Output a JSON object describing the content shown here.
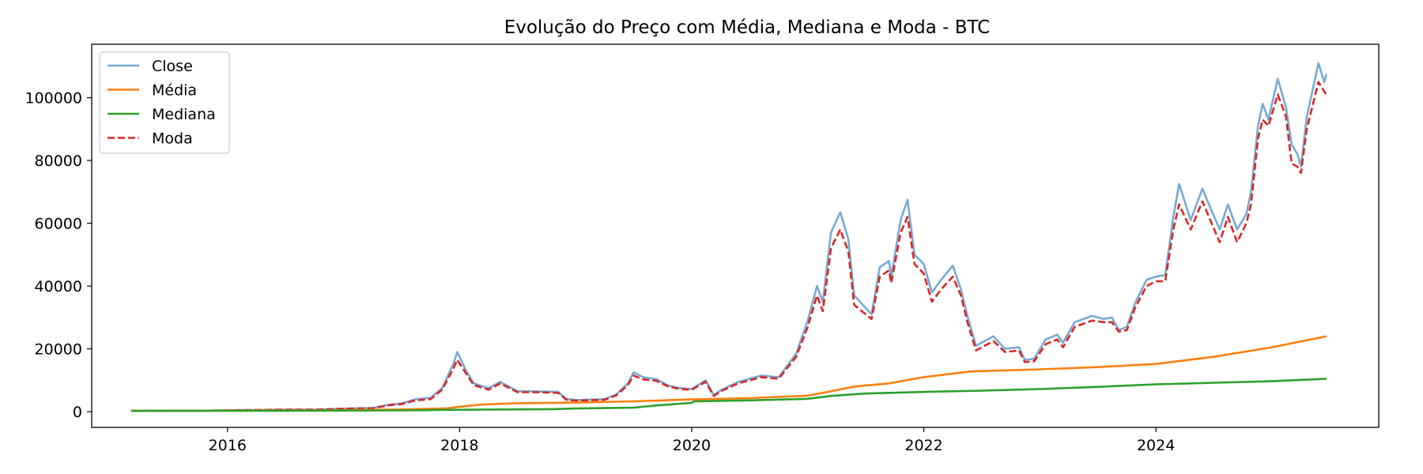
{
  "chart_data": {
    "type": "line",
    "title": "Evolução do Preço com Média, Mediana e Moda - BTC",
    "xlabel": "",
    "ylabel": "",
    "xlim": [
      2014.83,
      2025.92
    ],
    "ylim": [
      -5000,
      117000
    ],
    "x_ticks": [
      2016,
      2018,
      2020,
      2022,
      2024
    ],
    "y_ticks": [
      0,
      20000,
      40000,
      60000,
      80000,
      100000
    ],
    "legend_position": "top-left",
    "grid": false,
    "series": [
      {
        "name": "Close",
        "color": "#77aad3",
        "style": "solid",
        "points": [
          [
            2015.17,
            250
          ],
          [
            2015.5,
            260
          ],
          [
            2015.83,
            330
          ],
          [
            2016.0,
            430
          ],
          [
            2016.5,
            650
          ],
          [
            2016.75,
            640
          ],
          [
            2017.0,
            970
          ],
          [
            2017.25,
            1200
          ],
          [
            2017.4,
            2300
          ],
          [
            2017.5,
            2600
          ],
          [
            2017.62,
            4000
          ],
          [
            2017.75,
            4400
          ],
          [
            2017.85,
            7500
          ],
          [
            2017.95,
            15500
          ],
          [
            2017.98,
            19000
          ],
          [
            2018.05,
            13500
          ],
          [
            2018.12,
            9000
          ],
          [
            2018.25,
            7500
          ],
          [
            2018.35,
            9500
          ],
          [
            2018.5,
            6500
          ],
          [
            2018.65,
            6500
          ],
          [
            2018.85,
            6300
          ],
          [
            2018.92,
            4000
          ],
          [
            2019.0,
            3700
          ],
          [
            2019.25,
            4000
          ],
          [
            2019.35,
            5500
          ],
          [
            2019.45,
            9000
          ],
          [
            2019.5,
            12500
          ],
          [
            2019.58,
            11000
          ],
          [
            2019.7,
            10300
          ],
          [
            2019.8,
            8300
          ],
          [
            2019.9,
            7500
          ],
          [
            2020.0,
            7200
          ],
          [
            2020.12,
            10000
          ],
          [
            2020.19,
            5300
          ],
          [
            2020.25,
            6800
          ],
          [
            2020.4,
            9500
          ],
          [
            2020.6,
            11500
          ],
          [
            2020.75,
            11000
          ],
          [
            2020.9,
            18500
          ],
          [
            2021.0,
            29000
          ],
          [
            2021.08,
            40000
          ],
          [
            2021.13,
            35000
          ],
          [
            2021.2,
            57000
          ],
          [
            2021.28,
            63500
          ],
          [
            2021.35,
            55000
          ],
          [
            2021.4,
            37000
          ],
          [
            2021.5,
            33000
          ],
          [
            2021.55,
            31000
          ],
          [
            2021.62,
            46000
          ],
          [
            2021.7,
            48000
          ],
          [
            2021.72,
            43000
          ],
          [
            2021.8,
            61000
          ],
          [
            2021.86,
            67500
          ],
          [
            2021.92,
            50000
          ],
          [
            2022.0,
            47000
          ],
          [
            2022.07,
            38000
          ],
          [
            2022.15,
            42000
          ],
          [
            2022.25,
            46500
          ],
          [
            2022.32,
            39000
          ],
          [
            2022.38,
            30000
          ],
          [
            2022.45,
            21000
          ],
          [
            2022.55,
            23000
          ],
          [
            2022.6,
            24000
          ],
          [
            2022.7,
            20000
          ],
          [
            2022.82,
            20500
          ],
          [
            2022.87,
            16500
          ],
          [
            2022.95,
            16800
          ],
          [
            2023.05,
            23000
          ],
          [
            2023.15,
            24500
          ],
          [
            2023.2,
            22000
          ],
          [
            2023.3,
            28500
          ],
          [
            2023.45,
            30500
          ],
          [
            2023.55,
            29500
          ],
          [
            2023.62,
            30000
          ],
          [
            2023.68,
            26000
          ],
          [
            2023.75,
            27000
          ],
          [
            2023.82,
            34500
          ],
          [
            2023.92,
            42000
          ],
          [
            2024.0,
            43000
          ],
          [
            2024.08,
            43500
          ],
          [
            2024.15,
            62000
          ],
          [
            2024.2,
            72500
          ],
          [
            2024.3,
            61000
          ],
          [
            2024.4,
            71000
          ],
          [
            2024.48,
            64000
          ],
          [
            2024.55,
            58000
          ],
          [
            2024.62,
            66000
          ],
          [
            2024.7,
            58000
          ],
          [
            2024.78,
            63000
          ],
          [
            2024.82,
            70000
          ],
          [
            2024.88,
            91000
          ],
          [
            2024.92,
            98000
          ],
          [
            2024.97,
            93000
          ],
          [
            2025.05,
            106000
          ],
          [
            2025.12,
            97000
          ],
          [
            2025.17,
            85000
          ],
          [
            2025.22,
            82000
          ],
          [
            2025.25,
            78000
          ],
          [
            2025.3,
            94000
          ],
          [
            2025.36,
            104000
          ],
          [
            2025.4,
            111000
          ],
          [
            2025.45,
            105000
          ],
          [
            2025.47,
            107500
          ]
        ]
      },
      {
        "name": "Moda",
        "color": "#d62728",
        "style": "dashed",
        "points": [
          [
            2015.17,
            250
          ],
          [
            2015.5,
            260
          ],
          [
            2015.83,
            330
          ],
          [
            2016.0,
            430
          ],
          [
            2016.5,
            650
          ],
          [
            2016.75,
            640
          ],
          [
            2017.0,
            950
          ],
          [
            2017.25,
            1100
          ],
          [
            2017.4,
            2100
          ],
          [
            2017.5,
            2400
          ],
          [
            2017.62,
            3600
          ],
          [
            2017.75,
            4000
          ],
          [
            2017.85,
            7000
          ],
          [
            2017.95,
            14000
          ],
          [
            2017.98,
            16500
          ],
          [
            2018.05,
            12500
          ],
          [
            2018.12,
            8500
          ],
          [
            2018.25,
            7000
          ],
          [
            2018.35,
            9000
          ],
          [
            2018.5,
            6200
          ],
          [
            2018.65,
            6200
          ],
          [
            2018.85,
            6000
          ],
          [
            2018.92,
            3800
          ],
          [
            2019.0,
            3500
          ],
          [
            2019.25,
            3800
          ],
          [
            2019.35,
            5200
          ],
          [
            2019.45,
            8500
          ],
          [
            2019.5,
            11500
          ],
          [
            2019.58,
            10300
          ],
          [
            2019.7,
            9800
          ],
          [
            2019.8,
            8000
          ],
          [
            2019.9,
            7200
          ],
          [
            2020.0,
            7000
          ],
          [
            2020.12,
            9500
          ],
          [
            2020.19,
            5000
          ],
          [
            2020.25,
            6500
          ],
          [
            2020.4,
            9000
          ],
          [
            2020.6,
            11000
          ],
          [
            2020.75,
            10500
          ],
          [
            2020.9,
            17500
          ],
          [
            2021.0,
            27000
          ],
          [
            2021.08,
            37000
          ],
          [
            2021.13,
            32000
          ],
          [
            2021.2,
            52000
          ],
          [
            2021.28,
            58000
          ],
          [
            2021.35,
            51000
          ],
          [
            2021.4,
            34000
          ],
          [
            2021.5,
            31000
          ],
          [
            2021.55,
            29500
          ],
          [
            2021.62,
            43000
          ],
          [
            2021.7,
            45000
          ],
          [
            2021.72,
            41000
          ],
          [
            2021.8,
            57000
          ],
          [
            2021.86,
            62000
          ],
          [
            2021.92,
            47000
          ],
          [
            2022.0,
            44000
          ],
          [
            2022.07,
            35000
          ],
          [
            2022.15,
            39000
          ],
          [
            2022.25,
            43000
          ],
          [
            2022.32,
            37000
          ],
          [
            2022.38,
            28000
          ],
          [
            2022.45,
            19500
          ],
          [
            2022.55,
            21500
          ],
          [
            2022.6,
            22500
          ],
          [
            2022.7,
            19000
          ],
          [
            2022.82,
            19500
          ],
          [
            2022.87,
            15800
          ],
          [
            2022.95,
            16000
          ],
          [
            2023.05,
            21500
          ],
          [
            2023.15,
            23000
          ],
          [
            2023.2,
            20500
          ],
          [
            2023.3,
            27000
          ],
          [
            2023.45,
            29000
          ],
          [
            2023.55,
            28500
          ],
          [
            2023.62,
            28500
          ],
          [
            2023.68,
            25500
          ],
          [
            2023.75,
            26000
          ],
          [
            2023.82,
            33000
          ],
          [
            2023.92,
            40000
          ],
          [
            2024.0,
            41500
          ],
          [
            2024.08,
            41500
          ],
          [
            2024.15,
            58000
          ],
          [
            2024.2,
            66000
          ],
          [
            2024.3,
            58000
          ],
          [
            2024.4,
            67000
          ],
          [
            2024.48,
            60000
          ],
          [
            2024.55,
            54000
          ],
          [
            2024.62,
            62000
          ],
          [
            2024.7,
            54000
          ],
          [
            2024.78,
            60000
          ],
          [
            2024.82,
            66000
          ],
          [
            2024.88,
            87000
          ],
          [
            2024.92,
            93000
          ],
          [
            2024.97,
            91000
          ],
          [
            2025.05,
            101000
          ],
          [
            2025.12,
            94000
          ],
          [
            2025.17,
            79000
          ],
          [
            2025.22,
            78000
          ],
          [
            2025.25,
            76000
          ],
          [
            2025.3,
            90000
          ],
          [
            2025.36,
            99000
          ],
          [
            2025.4,
            105000
          ],
          [
            2025.45,
            102000
          ],
          [
            2025.47,
            101000
          ]
        ]
      },
      {
        "name": "Média",
        "color": "#ff7f0e",
        "style": "solid",
        "points": [
          [
            2015.17,
            250
          ],
          [
            2016.0,
            330
          ],
          [
            2017.0,
            480
          ],
          [
            2017.5,
            700
          ],
          [
            2017.9,
            1100
          ],
          [
            2018.0,
            1600
          ],
          [
            2018.2,
            2300
          ],
          [
            2018.5,
            2700
          ],
          [
            2019.0,
            2900
          ],
          [
            2019.5,
            3300
          ],
          [
            2020.0,
            3900
          ],
          [
            2020.5,
            4300
          ],
          [
            2021.0,
            5100
          ],
          [
            2021.2,
            6500
          ],
          [
            2021.4,
            8000
          ],
          [
            2021.7,
            9000
          ],
          [
            2022.0,
            11000
          ],
          [
            2022.4,
            12800
          ],
          [
            2023.0,
            13500
          ],
          [
            2023.5,
            14200
          ],
          [
            2024.0,
            15200
          ],
          [
            2024.5,
            17500
          ],
          [
            2025.0,
            20500
          ],
          [
            2025.47,
            24000
          ]
        ]
      },
      {
        "name": "Mediana",
        "color": "#2ca02c",
        "style": "solid",
        "points": [
          [
            2015.17,
            250
          ],
          [
            2016.5,
            300
          ],
          [
            2017.5,
            420
          ],
          [
            2018.0,
            600
          ],
          [
            2018.8,
            800
          ],
          [
            2019.0,
            1000
          ],
          [
            2019.5,
            1300
          ],
          [
            2019.7,
            2000
          ],
          [
            2020.0,
            2800
          ],
          [
            2020.02,
            3300
          ],
          [
            2020.5,
            3600
          ],
          [
            2021.0,
            4100
          ],
          [
            2021.2,
            5000
          ],
          [
            2021.5,
            5800
          ],
          [
            2022.0,
            6300
          ],
          [
            2022.5,
            6700
          ],
          [
            2023.0,
            7200
          ],
          [
            2023.5,
            7900
          ],
          [
            2024.0,
            8700
          ],
          [
            2024.5,
            9200
          ],
          [
            2025.0,
            9700
          ],
          [
            2025.47,
            10500
          ]
        ]
      }
    ]
  }
}
